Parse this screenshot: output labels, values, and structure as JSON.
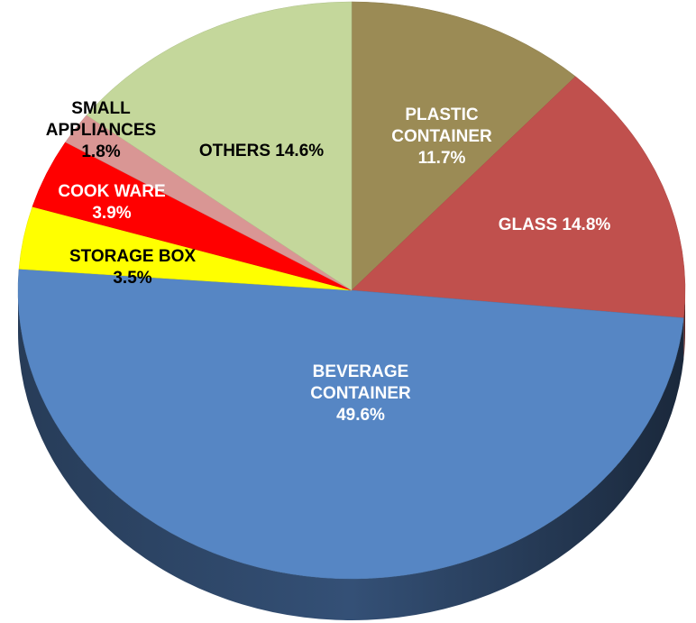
{
  "chart_data": {
    "type": "pie",
    "categories": [
      "PLASTIC CONTAINER",
      "GLASS",
      "BEVERAGE CONTAINER",
      "STORAGE BOX",
      "COOK WARE",
      "SMALL APPLIANCES",
      "OTHERS"
    ],
    "values": [
      11.7,
      14.8,
      49.6,
      3.5,
      3.9,
      1.8,
      14.6
    ],
    "value_labels": [
      "11.7%",
      "14.8%",
      "49.6%",
      "3.5%",
      "3.9%",
      "1.8%",
      "14.6%"
    ],
    "colors": [
      "#9b8b55",
      "#c0504d",
      "#5686c4",
      "#ffff00",
      "#ff0000",
      "#d99694",
      "#c4d79b"
    ]
  }
}
